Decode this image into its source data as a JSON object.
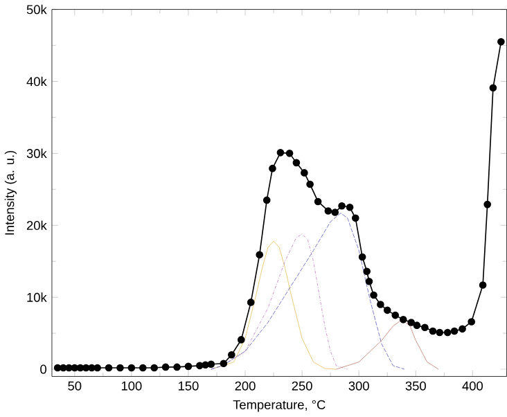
{
  "chart_data": {
    "type": "line",
    "xlabel": "Temperature, °C",
    "ylabel": "Intensity (a. u.)",
    "xlim": [
      30,
      430
    ],
    "ylim": [
      -1000,
      50000
    ],
    "xticks": [
      50,
      100,
      150,
      200,
      250,
      300,
      350,
      400
    ],
    "yticks": [
      0,
      {
        "value": 10000,
        "label": "10k"
      },
      {
        "value": 20000,
        "label": "20k"
      },
      {
        "value": 30000,
        "label": "30k"
      },
      {
        "value": 40000,
        "label": "40k"
      },
      {
        "value": 50000,
        "label": "50k"
      }
    ],
    "grid": false,
    "series": [
      {
        "color": "#e8c060",
        "line_style": "solid",
        "marker": "none",
        "x": [
          170,
          190,
          200,
          210,
          215,
          220,
          225,
          230,
          235,
          240,
          250,
          260,
          270,
          280
        ],
        "values": [
          0,
          1000,
          4300,
          10600,
          14100,
          16900,
          17800,
          16900,
          14100,
          10600,
          4300,
          1000,
          100,
          0
        ]
      },
      {
        "color": "#c080c0",
        "line_style": "dotted",
        "marker": "none",
        "x": [
          170,
          180,
          200,
          220,
          235,
          245,
          250,
          255,
          260,
          265,
          270,
          275,
          280,
          290
        ],
        "values": [
          0,
          500,
          2500,
          8500,
          15000,
          18300,
          18800,
          18000,
          15000,
          10500,
          6000,
          2500,
          500,
          0
        ]
      },
      {
        "color": "#6060c0",
        "line_style": "dashed",
        "marker": "none",
        "x": [
          170,
          180,
          200,
          220,
          240,
          260,
          275,
          284,
          290,
          300,
          310,
          320,
          330,
          340
        ],
        "values": [
          0,
          500,
          2500,
          6500,
          11500,
          16500,
          20500,
          21700,
          21000,
          16500,
          9500,
          3500,
          500,
          0
        ]
      },
      {
        "color": "#c08070",
        "line_style": "solid",
        "marker": "none",
        "x": [
          280,
          300,
          320,
          330,
          338,
          345,
          350,
          360,
          370
        ],
        "values": [
          0,
          1000,
          4000,
          6000,
          6900,
          6000,
          4000,
          1000,
          0
        ]
      },
      {
        "color": "#000000",
        "line_style": "solid",
        "marker": "circle",
        "x": [
          35,
          40,
          45,
          50,
          55,
          60,
          65,
          70,
          80,
          90,
          100,
          110,
          120,
          130,
          140,
          150,
          160,
          165,
          170,
          181,
          188,
          196.5,
          205,
          212.6,
          219,
          224,
          231,
          239,
          245,
          252,
          257,
          264,
          273,
          279,
          285,
          292,
          297,
          303,
          307,
          309,
          313,
          319,
          325,
          332,
          339,
          346,
          351,
          358,
          365,
          371,
          378,
          384,
          391,
          399,
          409,
          413,
          418,
          425
        ],
        "values": [
          200,
          200,
          200,
          200,
          200,
          200,
          200,
          200,
          200,
          200,
          200,
          200,
          200,
          300,
          300,
          400,
          500,
          600,
          700,
          800,
          2000,
          4100,
          9300,
          15900,
          23500,
          27900,
          30100,
          30000,
          28700,
          27300,
          25700,
          23300,
          22000,
          21800,
          22700,
          22500,
          21000,
          15600,
          13600,
          12200,
          10300,
          9000,
          8200,
          7500,
          6900,
          6500,
          6100,
          5800,
          5300,
          5100,
          5100,
          5300,
          5600,
          6600,
          11700,
          22900,
          39100,
          45500
        ]
      }
    ]
  }
}
